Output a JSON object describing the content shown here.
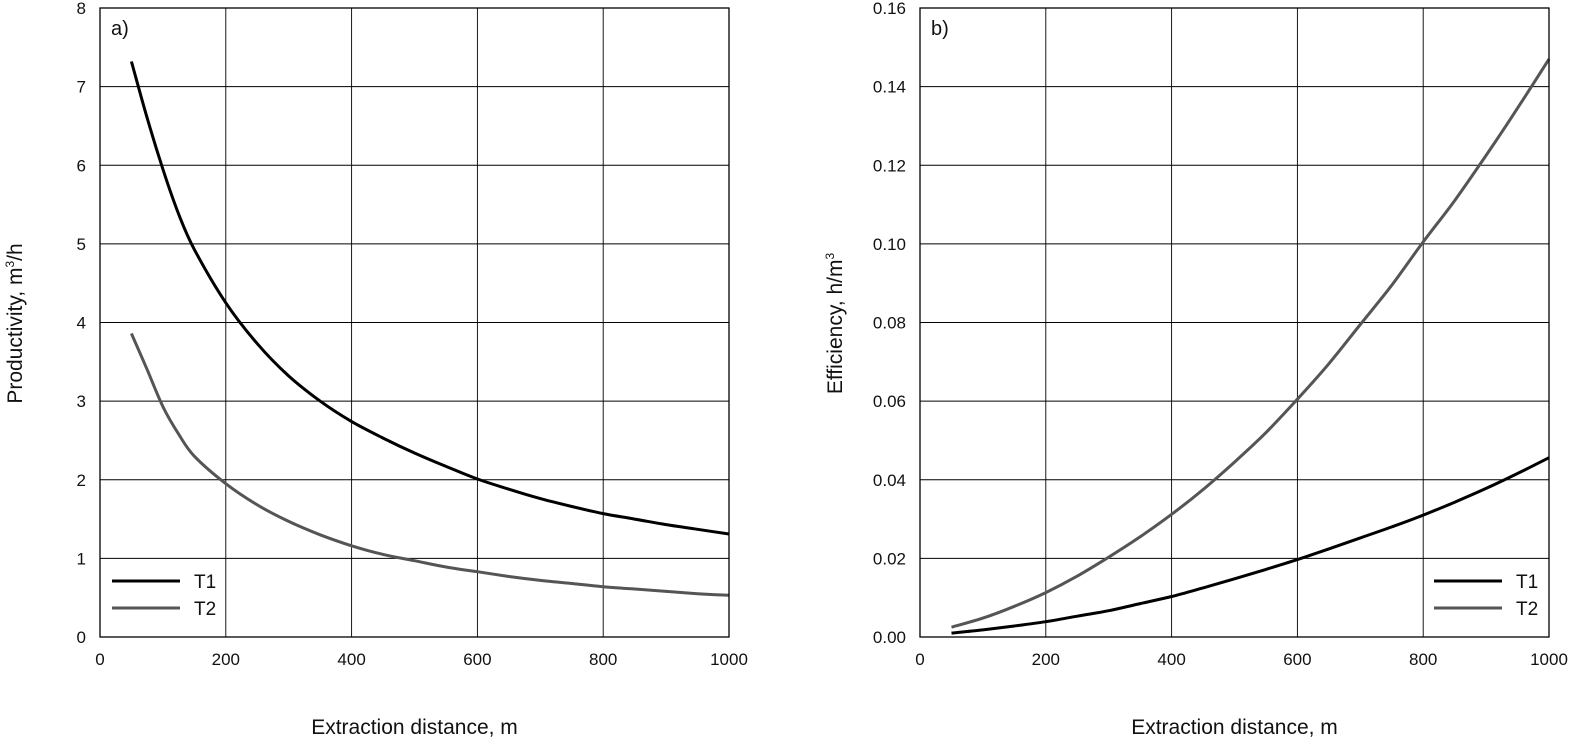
{
  "chart_data": [
    {
      "panel": "a)",
      "type": "line",
      "xlabel": "Extraction distance, m",
      "ylabel": "Productivity, m",
      "ylabel_sup": "3",
      "ylabel_suffix": "/h",
      "xlim": [
        0,
        1000
      ],
      "ylim": [
        0,
        8
      ],
      "xticks": [
        0,
        200,
        400,
        600,
        800,
        1000
      ],
      "yticks": [
        0,
        1,
        2,
        3,
        4,
        5,
        6,
        7,
        8
      ],
      "ytick_labels": [
        "0",
        "1",
        "2",
        "3",
        "4",
        "5",
        "6",
        "7",
        "8"
      ],
      "grid": true,
      "legend_position": "bottom-left",
      "x": [
        50,
        75,
        100,
        125,
        150,
        200,
        250,
        300,
        350,
        400,
        450,
        500,
        550,
        600,
        650,
        700,
        750,
        800,
        850,
        900,
        950,
        1000
      ],
      "series": [
        {
          "name": "T1",
          "color": "#000000",
          "values": [
            7.32,
            6.6,
            5.95,
            5.38,
            4.93,
            4.25,
            3.73,
            3.32,
            3.0,
            2.74,
            2.53,
            2.34,
            2.17,
            2.01,
            1.88,
            1.76,
            1.66,
            1.57,
            1.5,
            1.43,
            1.37,
            1.31
          ]
        },
        {
          "name": "T2",
          "color": "#555555",
          "values": [
            3.86,
            3.4,
            2.93,
            2.58,
            2.3,
            1.95,
            1.68,
            1.47,
            1.3,
            1.16,
            1.05,
            0.97,
            0.89,
            0.83,
            0.77,
            0.72,
            0.68,
            0.64,
            0.61,
            0.58,
            0.55,
            0.53
          ]
        }
      ]
    },
    {
      "panel": "b)",
      "type": "line",
      "xlabel": "Extraction distance, m",
      "ylabel": "Efficiency, h/m",
      "ylabel_sup": "3",
      "ylabel_suffix": "",
      "xlim": [
        0,
        1000
      ],
      "ylim": [
        0,
        0.16
      ],
      "xticks": [
        0,
        200,
        400,
        600,
        800,
        1000
      ],
      "yticks": [
        0,
        0.02,
        0.04,
        0.06,
        0.08,
        0.1,
        0.12,
        0.14,
        0.16
      ],
      "ytick_labels": [
        "0.00",
        "0.02",
        "0.04",
        "0.06",
        "0.08",
        "0.10",
        "0.12",
        "0.14",
        "0.16"
      ],
      "grid": true,
      "legend_position": "bottom-right",
      "x": [
        50,
        100,
        150,
        200,
        250,
        300,
        350,
        400,
        450,
        500,
        550,
        600,
        650,
        700,
        750,
        800,
        850,
        900,
        950,
        1000
      ],
      "series": [
        {
          "name": "T1",
          "color": "#000000",
          "values": [
            0.001,
            0.0018,
            0.0028,
            0.0039,
            0.0053,
            0.0067,
            0.0085,
            0.0103,
            0.0125,
            0.0148,
            0.0172,
            0.0197,
            0.0224,
            0.0252,
            0.028,
            0.031,
            0.0343,
            0.0378,
            0.0416,
            0.0456
          ]
        },
        {
          "name": "T2",
          "color": "#555555",
          "values": [
            0.0025,
            0.0048,
            0.0078,
            0.0113,
            0.0155,
            0.0203,
            0.0255,
            0.0312,
            0.0375,
            0.0445,
            0.052,
            0.0605,
            0.0695,
            0.0795,
            0.0895,
            0.1005,
            0.111,
            0.1225,
            0.1345,
            0.147
          ]
        }
      ]
    }
  ]
}
